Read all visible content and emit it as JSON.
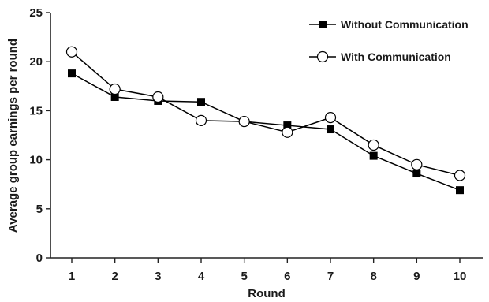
{
  "chart_data": {
    "type": "line",
    "title": "",
    "xlabel": "Round",
    "ylabel": "Average group earnings per round",
    "x": [
      1,
      2,
      3,
      4,
      5,
      6,
      7,
      8,
      9,
      10
    ],
    "x_tick_labels": [
      "1",
      "2",
      "3",
      "4",
      "5",
      "6",
      "7",
      "8",
      "9",
      "10"
    ],
    "ylim": [
      0,
      25
    ],
    "y_ticks": [
      0,
      5,
      10,
      15,
      20,
      25
    ],
    "y_tick_labels": [
      "0",
      "5",
      "10",
      "15",
      "20",
      "25"
    ],
    "grid": false,
    "legend_position": "top-right",
    "series": [
      {
        "name": "Without Communication",
        "marker": "filled-square",
        "color": "#000000",
        "values": [
          18.8,
          16.4,
          16.0,
          15.9,
          13.9,
          13.5,
          13.1,
          10.4,
          8.6,
          6.9
        ]
      },
      {
        "name": "With Communication",
        "marker": "open-circle",
        "color": "#000000",
        "values": [
          21.0,
          17.2,
          16.4,
          14.0,
          13.9,
          12.8,
          14.3,
          11.5,
          9.5,
          8.4
        ]
      }
    ]
  }
}
